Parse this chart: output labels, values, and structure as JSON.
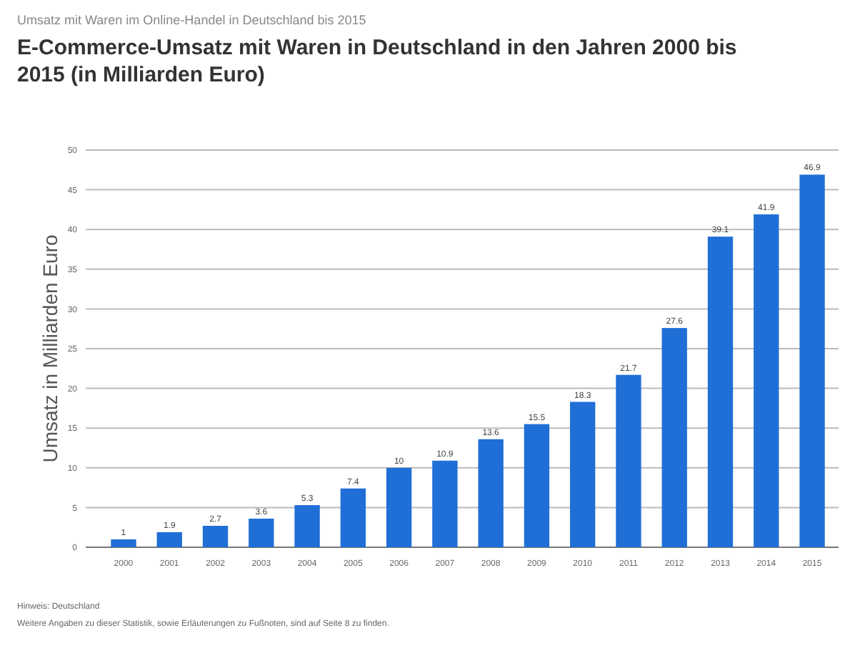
{
  "chart_data": {
    "type": "bar",
    "subtitle": "Umsatz mit Waren im Online-Handel in Deutschland bis 2015",
    "title": "E-Commerce-Umsatz mit Waren in Deutschland in den Jahren 2000 bis 2015 (in Milliarden Euro)",
    "ylabel": "Umsatz in Milliarden Euro",
    "categories": [
      "2000",
      "2001",
      "2002",
      "2003",
      "2004",
      "2005",
      "2006",
      "2007",
      "2008",
      "2009",
      "2010",
      "2011",
      "2012",
      "2013",
      "2014",
      "2015"
    ],
    "values": [
      1,
      1.9,
      2.7,
      3.6,
      5.3,
      7.4,
      10,
      10.9,
      13.6,
      15.5,
      18.3,
      21.7,
      27.6,
      39.1,
      41.9,
      46.9
    ],
    "color": "#1f6fd6",
    "ylim": [
      0,
      50
    ],
    "yticks": [
      0,
      5,
      10,
      15,
      20,
      25,
      30,
      35,
      40,
      45,
      50
    ],
    "grid": true,
    "data_labels": true,
    "annotations": [
      "Hinweis: Deutschland",
      "Weitere Angaben zu dieser Statistik, sowie Erläuterungen zu Fußnoten, sind auf Seite 8 zu finden."
    ]
  }
}
